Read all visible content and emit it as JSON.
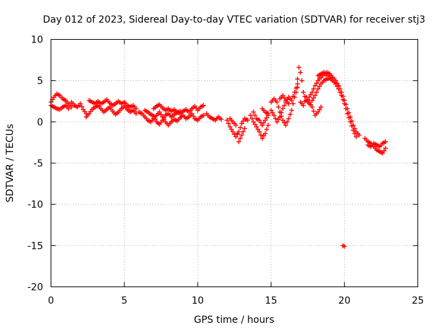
{
  "chart_data": {
    "type": "scatter",
    "title": "Day 012 of 2023, Sidereal Day-to-day VTEC variation (SDTVAR) for receiver stj3",
    "xlabel": "GPS time / hours",
    "ylabel": "SDTVAR / TECUs",
    "xlim": [
      0,
      25
    ],
    "ylim": [
      -20,
      10
    ],
    "x_ticks": [
      "0",
      "5",
      "10",
      "15",
      "20",
      "25"
    ],
    "y_ticks": [
      "10",
      "5",
      "0",
      "-5",
      "-10",
      "-15",
      "-20"
    ],
    "grid": true,
    "marker": "+",
    "color": "#ff0000",
    "series": [
      {
        "name": "stj3",
        "curves": [
          [
            [
              0.0,
              2.4
            ],
            [
              0.2,
              3.0
            ],
            [
              0.4,
              3.4
            ],
            [
              0.6,
              3.2
            ],
            [
              0.8,
              2.8
            ],
            [
              1.0,
              2.6
            ],
            [
              1.2,
              2.2
            ],
            [
              1.4,
              1.8
            ]
          ],
          [
            [
              0.0,
              2.0
            ],
            [
              0.2,
              1.8
            ],
            [
              0.4,
              1.6
            ],
            [
              0.6,
              1.5
            ],
            [
              0.8,
              1.8
            ],
            [
              1.0,
              2.0
            ],
            [
              1.2,
              1.6
            ]
          ],
          [
            [
              1.4,
              2.4
            ],
            [
              1.6,
              2.0
            ],
            [
              1.8,
              1.8
            ],
            [
              2.0,
              2.2
            ],
            [
              2.2,
              1.5
            ],
            [
              2.4,
              1.0
            ]
          ],
          [
            [
              2.4,
              0.6
            ],
            [
              2.6,
              1.0
            ],
            [
              2.8,
              1.5
            ],
            [
              3.0,
              1.8
            ],
            [
              3.2,
              2.0
            ],
            [
              3.4,
              1.6
            ],
            [
              3.6,
              1.2
            ],
            [
              3.8,
              1.5
            ],
            [
              4.0,
              1.8
            ],
            [
              4.2,
              1.3
            ],
            [
              4.4,
              0.9
            ],
            [
              4.6,
              1.2
            ],
            [
              4.8,
              1.6
            ],
            [
              5.0,
              1.9
            ],
            [
              5.2,
              1.5
            ],
            [
              5.4,
              1.2
            ],
            [
              5.6,
              1.4
            ],
            [
              5.8,
              1.0
            ]
          ],
          [
            [
              2.6,
              2.6
            ],
            [
              2.8,
              2.4
            ],
            [
              3.0,
              2.2
            ],
            [
              3.2,
              2.5
            ],
            [
              3.4,
              2.2
            ],
            [
              3.6,
              2.4
            ],
            [
              3.8,
              2.7
            ],
            [
              4.0,
              2.3
            ],
            [
              4.2,
              2.0
            ],
            [
              4.4,
              2.2
            ],
            [
              4.6,
              2.5
            ],
            [
              4.8,
              2.2
            ],
            [
              5.0,
              2.4
            ],
            [
              5.2,
              2.0
            ],
            [
              5.4,
              1.8
            ],
            [
              5.6,
              2.0
            ],
            [
              5.8,
              1.6
            ]
          ],
          [
            [
              6.0,
              1.2
            ],
            [
              6.2,
              1.0
            ],
            [
              6.4,
              0.6
            ],
            [
              6.6,
              0.2
            ],
            [
              6.8,
              0.0
            ],
            [
              7.0,
              0.4
            ],
            [
              7.2,
              0.8
            ],
            [
              7.4,
              1.2
            ],
            [
              7.6,
              0.6
            ],
            [
              7.8,
              0.0
            ],
            [
              8.0,
              -0.4
            ],
            [
              8.2,
              0.0
            ],
            [
              8.4,
              0.3
            ],
            [
              8.6,
              0.1
            ],
            [
              8.8,
              0.5
            ],
            [
              9.0,
              0.8
            ],
            [
              9.2,
              0.4
            ],
            [
              9.4,
              0.6
            ],
            [
              9.6,
              1.0
            ],
            [
              9.8,
              0.4
            ],
            [
              10.0,
              0.2
            ],
            [
              10.2,
              0.6
            ],
            [
              10.4,
              0.8
            ]
          ],
          [
            [
              6.4,
              1.4
            ],
            [
              6.6,
              1.2
            ],
            [
              6.8,
              0.9
            ],
            [
              7.0,
              0.7
            ],
            [
              7.2,
              0.0
            ],
            [
              7.4,
              -0.3
            ],
            [
              7.6,
              0.2
            ],
            [
              7.8,
              0.8
            ],
            [
              8.0,
              1.0
            ],
            [
              8.2,
              0.6
            ],
            [
              8.4,
              0.9
            ],
            [
              8.6,
              1.2
            ],
            [
              8.8,
              1.0
            ],
            [
              9.0,
              1.3
            ],
            [
              9.2,
              1.5
            ],
            [
              9.4,
              1.2
            ],
            [
              9.6,
              1.6
            ],
            [
              9.8,
              1.9
            ],
            [
              10.0,
              1.4
            ],
            [
              10.2,
              1.8
            ],
            [
              10.4,
              2.0
            ]
          ],
          [
            [
              7.0,
              1.6
            ],
            [
              7.2,
              1.9
            ],
            [
              7.4,
              2.1
            ],
            [
              7.6,
              1.7
            ],
            [
              7.8,
              1.4
            ],
            [
              8.0,
              1.6
            ],
            [
              8.2,
              1.3
            ],
            [
              8.4,
              1.5
            ],
            [
              8.6,
              1.1
            ],
            [
              8.8,
              1.3
            ]
          ],
          [
            [
              10.6,
              1.0
            ],
            [
              10.8,
              0.6
            ],
            [
              11.0,
              0.4
            ],
            [
              11.2,
              0.2
            ],
            [
              11.4,
              0.6
            ],
            [
              11.6,
              0.3
            ]
          ],
          [
            [
              12.0,
              0.2
            ],
            [
              12.2,
              -0.6
            ],
            [
              12.4,
              -1.2
            ],
            [
              12.6,
              -1.8
            ],
            [
              12.8,
              -1.2
            ],
            [
              13.0,
              -0.2
            ],
            [
              13.2,
              0.4
            ],
            [
              13.4,
              0.2
            ]
          ],
          [
            [
              12.2,
              0.4
            ],
            [
              12.4,
              0.0
            ],
            [
              12.6,
              -0.4
            ],
            [
              12.8,
              -2.4
            ],
            [
              13.0,
              -1.6
            ],
            [
              13.2,
              -0.8
            ]
          ],
          [
            [
              13.6,
              0.8
            ],
            [
              13.8,
              0.0
            ],
            [
              14.0,
              -0.6
            ],
            [
              14.2,
              -1.2
            ],
            [
              14.4,
              -2.0
            ],
            [
              14.6,
              -1.4
            ],
            [
              14.8,
              -0.4
            ]
          ],
          [
            [
              13.8,
              1.2
            ],
            [
              14.0,
              0.4
            ],
            [
              14.2,
              0.2
            ],
            [
              14.4,
              -0.4
            ],
            [
              14.6,
              0.2
            ],
            [
              14.8,
              0.8
            ]
          ],
          [
            [
              14.4,
              1.6
            ],
            [
              14.6,
              1.2
            ],
            [
              14.8,
              1.0
            ]
          ],
          [
            [
              15.0,
              2.4
            ],
            [
              15.2,
              2.8
            ],
            [
              15.4,
              2.4
            ],
            [
              15.6,
              1.2
            ],
            [
              15.8,
              0.2
            ],
            [
              16.0,
              -0.4
            ],
            [
              16.2,
              0.4
            ],
            [
              16.4,
              1.4
            ],
            [
              16.6,
              3.0
            ],
            [
              16.8,
              4.2
            ]
          ],
          [
            [
              15.0,
              1.4
            ],
            [
              15.2,
              0.8
            ],
            [
              15.4,
              0.0
            ],
            [
              15.6,
              0.6
            ],
            [
              15.8,
              1.6
            ],
            [
              16.0,
              2.4
            ],
            [
              16.2,
              3.0
            ],
            [
              16.4,
              2.6
            ],
            [
              16.6,
              3.6
            ],
            [
              16.8,
              4.6
            ]
          ],
          [
            [
              15.6,
              2.8
            ],
            [
              15.8,
              3.2
            ],
            [
              16.0,
              2.6
            ],
            [
              16.2,
              2.2
            ]
          ],
          [
            [
              16.8,
              5.2
            ],
            [
              16.9,
              6.6
            ],
            [
              17.0,
              6.0
            ],
            [
              17.1,
              5.0
            ],
            [
              17.2,
              3.6
            ],
            [
              17.4,
              2.6
            ],
            [
              17.6,
              2.2
            ]
          ],
          [
            [
              17.0,
              2.4
            ],
            [
              17.2,
              2.0
            ],
            [
              17.4,
              3.0
            ],
            [
              17.6,
              2.4
            ],
            [
              17.8,
              1.8
            ],
            [
              18.0,
              0.8
            ],
            [
              18.2,
              1.2
            ],
            [
              18.4,
              1.8
            ]
          ],
          [
            [
              17.6,
              3.0
            ],
            [
              17.8,
              3.6
            ],
            [
              18.0,
              4.4
            ],
            [
              18.2,
              5.0
            ],
            [
              18.4,
              5.4
            ],
            [
              18.6,
              5.8
            ],
            [
              18.8,
              6.0
            ],
            [
              19.0,
              5.8
            ],
            [
              19.2,
              5.4
            ],
            [
              19.4,
              5.0
            ],
            [
              19.6,
              4.4
            ],
            [
              19.8,
              3.6
            ],
            [
              20.0,
              2.6
            ],
            [
              20.2,
              1.6
            ],
            [
              20.4,
              0.6
            ],
            [
              20.6,
              -0.4
            ],
            [
              20.8,
              -1.2
            ],
            [
              21.0,
              -1.6
            ]
          ],
          [
            [
              17.8,
              2.6
            ],
            [
              18.0,
              3.2
            ],
            [
              18.2,
              4.0
            ],
            [
              18.4,
              4.6
            ],
            [
              18.6,
              5.0
            ],
            [
              18.8,
              5.2
            ],
            [
              19.0,
              5.3
            ],
            [
              19.2,
              5.0
            ],
            [
              19.4,
              4.6
            ],
            [
              19.6,
              4.0
            ],
            [
              19.8,
              3.2
            ],
            [
              20.0,
              2.2
            ],
            [
              20.2,
              1.0
            ],
            [
              20.4,
              0.0
            ],
            [
              20.6,
              -1.0
            ],
            [
              20.8,
              -1.8
            ]
          ],
          [
            [
              18.2,
              5.6
            ],
            [
              18.4,
              5.8
            ],
            [
              18.6,
              6.0
            ],
            [
              18.8,
              5.6
            ],
            [
              19.0,
              5.6
            ]
          ],
          [
            [
              21.4,
              -2.0
            ],
            [
              21.6,
              -2.4
            ],
            [
              21.8,
              -2.6
            ],
            [
              22.0,
              -3.0
            ],
            [
              22.2,
              -3.4
            ],
            [
              22.4,
              -3.6
            ],
            [
              22.6,
              -3.8
            ],
            [
              22.8,
              -3.2
            ]
          ],
          [
            [
              21.6,
              -2.8
            ],
            [
              21.8,
              -3.0
            ],
            [
              22.0,
              -2.6
            ],
            [
              22.2,
              -2.8
            ],
            [
              22.4,
              -3.0
            ],
            [
              22.6,
              -2.6
            ],
            [
              22.8,
              -2.4
            ]
          ],
          [
            [
              19.9,
              -15.0
            ],
            [
              20.0,
              -15.1
            ]
          ]
        ]
      }
    ]
  }
}
